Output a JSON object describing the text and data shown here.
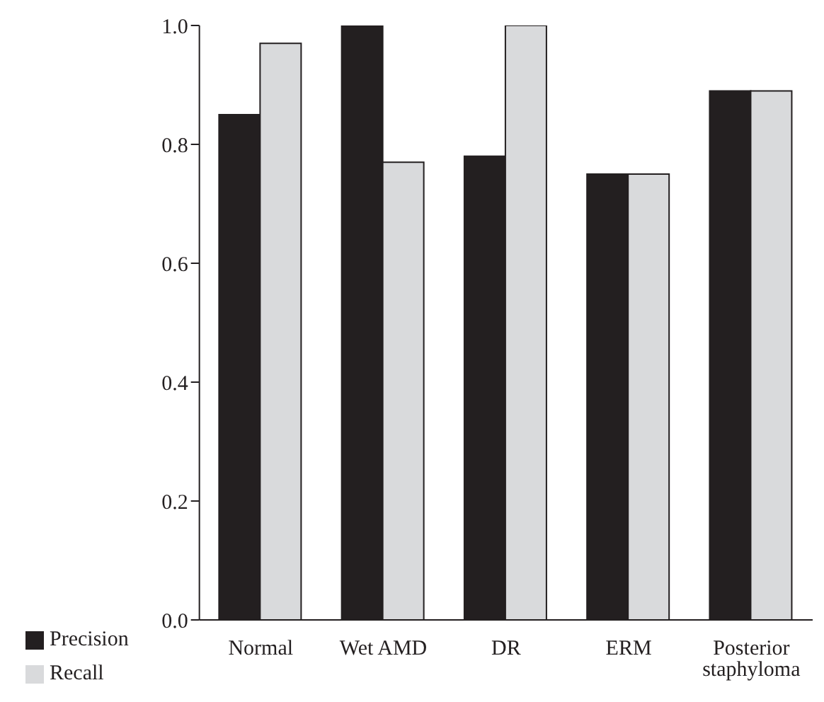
{
  "chart_data": {
    "type": "bar",
    "categories": [
      "Normal",
      "Wet AMD",
      "DR",
      "ERM",
      "Posterior staphyloma"
    ],
    "series": [
      {
        "name": "Precision",
        "color": "#231f20",
        "values": [
          0.85,
          1.0,
          0.78,
          0.75,
          0.89
        ]
      },
      {
        "name": "Recall",
        "color": "#d9dadc",
        "values": [
          0.97,
          0.77,
          1.0,
          0.75,
          0.89
        ]
      }
    ],
    "ylim": [
      0,
      1
    ],
    "yticks": [
      {
        "value": 0,
        "label": "0.0"
      },
      {
        "value": 0.2,
        "label": "0.2"
      },
      {
        "value": 0.4,
        "label": "0.4"
      },
      {
        "value": 0.6,
        "label": "0.6"
      },
      {
        "value": 0.8,
        "label": "0.8"
      },
      {
        "value": 1,
        "label": "1.0"
      }
    ],
    "grid": false,
    "legend": "bottom left"
  }
}
